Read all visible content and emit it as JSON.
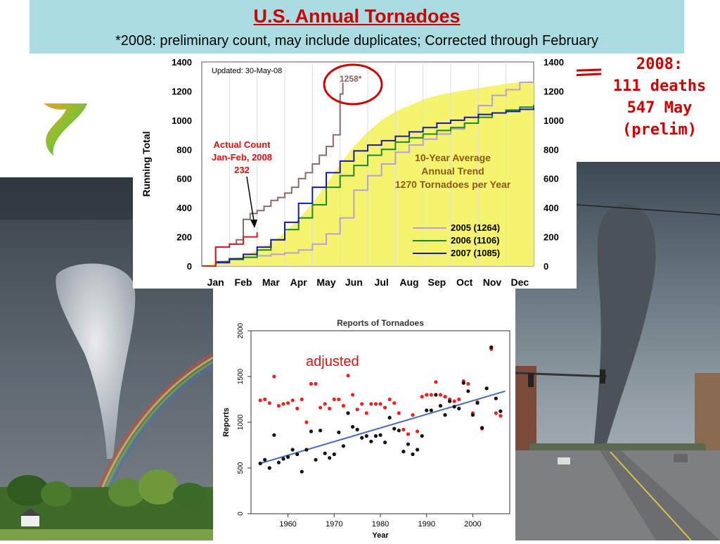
{
  "header": {
    "title": "U.S. Annual Tornadoes",
    "subtitle": "*2008: preliminary count, may include duplicates; Corrected through February"
  },
  "note_2008": [
    "2008:",
    "111 deaths",
    "547 May",
    "(prelim)"
  ],
  "photos": [
    "tornado-with-rainbow-photo",
    "tornado-over-town-street-photo",
    "tornado-logo-icon"
  ],
  "colors": {
    "title_red": "#cc0000",
    "header_bg": "#a9dde2",
    "trend_fill": "#f6f36e",
    "s2005": "#b79ee0",
    "s2006": "#1a8a2a",
    "s2007": "#1a1aaa",
    "s2008": "#cc2222",
    "adj_red": "#ee2222",
    "trend_blue": "#4a6ab8"
  },
  "chart_data": [
    {
      "type": "line",
      "title": "",
      "ylabel": "Running Total",
      "ylim": [
        0,
        1400
      ],
      "yticks": [
        "0",
        "200",
        "400",
        "600",
        "800",
        "1000",
        "1200",
        "1400"
      ],
      "categories": [
        "Jan",
        "Feb",
        "Mar",
        "Apr",
        "May",
        "Jun",
        "Jul",
        "Aug",
        "Sep",
        "Oct",
        "Nov",
        "Dec"
      ],
      "updated_label": "Updated: 30-May-08",
      "annotation_1258": "1258*",
      "actual_count_label": [
        "Actual Count",
        "Jan-Feb, 2008",
        "232"
      ],
      "trend_label": [
        "10-Year Average",
        "Annual Trend",
        "1270 Tornadoes per Year"
      ],
      "area": {
        "name": "10-Year Average Annual Trend",
        "x": [
          0,
          0.5,
          1,
          1.5,
          2,
          2.5,
          3,
          3.5,
          4,
          4.5,
          5,
          5.5,
          6,
          6.5,
          7,
          7.5,
          8,
          8.5,
          9,
          9.5,
          10,
          10.5,
          11,
          11.5,
          12
        ],
        "values": [
          0,
          20,
          45,
          70,
          110,
          160,
          230,
          320,
          430,
          560,
          700,
          820,
          920,
          1000,
          1060,
          1100,
          1140,
          1170,
          1190,
          1205,
          1220,
          1235,
          1250,
          1262,
          1270
        ]
      },
      "series": [
        {
          "name": "2005 (1264)",
          "x": [
            0,
            0.5,
            1,
            1.5,
            2,
            2.5,
            3,
            3.5,
            4,
            4.5,
            5,
            5.5,
            6,
            6.5,
            7,
            7.5,
            8,
            8.5,
            9,
            9.5,
            10,
            10.5,
            11,
            11.5,
            12
          ],
          "values": [
            0,
            20,
            45,
            60,
            70,
            80,
            90,
            110,
            150,
            220,
            330,
            520,
            620,
            700,
            780,
            830,
            870,
            905,
            940,
            980,
            1100,
            1170,
            1210,
            1260,
            1264
          ]
        },
        {
          "name": "2006 (1106)",
          "x": [
            0,
            0.5,
            1,
            1.5,
            2,
            2.5,
            3,
            3.5,
            4,
            4.5,
            5,
            5.5,
            6,
            6.5,
            7,
            7.5,
            8,
            8.5,
            9,
            9.5,
            10,
            10.5,
            11,
            11.5,
            12
          ],
          "values": [
            0,
            30,
            45,
            60,
            110,
            180,
            250,
            330,
            420,
            540,
            620,
            690,
            760,
            800,
            850,
            880,
            905,
            930,
            950,
            980,
            1020,
            1050,
            1070,
            1090,
            1106
          ]
        },
        {
          "name": "2007 (1085)",
          "x": [
            0,
            0.5,
            1,
            1.5,
            2,
            2.5,
            3,
            3.5,
            4,
            4.5,
            5,
            5.5,
            6,
            6.5,
            7,
            7.5,
            8,
            8.5,
            9,
            9.5,
            10,
            10.5,
            11,
            11.5,
            12
          ],
          "values": [
            0,
            25,
            50,
            80,
            130,
            180,
            300,
            430,
            540,
            640,
            720,
            790,
            830,
            860,
            890,
            920,
            950,
            980,
            1000,
            1020,
            1040,
            1050,
            1060,
            1075,
            1085
          ]
        },
        {
          "name": "2008",
          "x": [
            0,
            0.5,
            1,
            1.25,
            1.5,
            1.75,
            2,
            2.25,
            2.5,
            2.75,
            3,
            3.25,
            3.5,
            3.75,
            4,
            4.25,
            4.5,
            4.75,
            5,
            5.1
          ],
          "values": [
            0,
            130,
            150,
            180,
            320,
            360,
            380,
            410,
            450,
            470,
            500,
            540,
            600,
            640,
            700,
            760,
            820,
            900,
            1180,
            1258
          ]
        },
        {
          "name": "2008 Jan-Feb",
          "x": [
            0,
            0.5,
            1,
            1.5,
            2
          ],
          "values": [
            0,
            130,
            150,
            200,
            232
          ]
        }
      ]
    },
    {
      "type": "scatter",
      "title": "Reports of Tornadoes",
      "xlabel": "Year",
      "ylabel": "Reports",
      "xlim": [
        1952,
        2008
      ],
      "ylim": [
        0,
        2000
      ],
      "xticks": [
        "1960",
        "1970",
        "1980",
        "1990",
        "2000"
      ],
      "yticks": [
        "0",
        "500",
        "1000",
        "1500",
        "2000"
      ],
      "annotation": "adjusted",
      "trendline": {
        "x": [
          1954,
          2007
        ],
        "y": [
          550,
          1340
        ]
      },
      "series": [
        {
          "name": "adjusted",
          "x": [
            1954,
            1955,
            1956,
            1957,
            1958,
            1959,
            1960,
            1961,
            1962,
            1963,
            1964,
            1965,
            1966,
            1967,
            1968,
            1969,
            1970,
            1971,
            1972,
            1973,
            1974,
            1975,
            1976,
            1977,
            1978,
            1979,
            1980,
            1981,
            1982,
            1983,
            1984,
            1985,
            1986,
            1987,
            1988,
            1989,
            1990,
            1991,
            1992,
            1993,
            1994,
            1995,
            1996,
            1997,
            1998,
            1999,
            2000,
            2001,
            2002,
            2003,
            2004,
            2005,
            2006
          ],
          "values": [
            1240,
            1250,
            1210,
            1500,
            1180,
            1200,
            1210,
            1240,
            1150,
            1250,
            1000,
            1420,
            1420,
            1160,
            1200,
            1150,
            1250,
            1250,
            1180,
            1510,
            1300,
            1140,
            1200,
            1100,
            1200,
            1200,
            1200,
            1160,
            1250,
            1210,
            1100,
            920,
            870,
            1080,
            900,
            1280,
            1300,
            1300,
            1440,
            1300,
            1280,
            1250,
            1230,
            1250,
            1450,
            1420,
            1100,
            1220,
            930,
            1370,
            1800,
            1100,
            1070
          ]
        },
        {
          "name": "reports",
          "x": [
            1954,
            1955,
            1956,
            1957,
            1958,
            1959,
            1960,
            1961,
            1962,
            1963,
            1964,
            1965,
            1966,
            1967,
            1968,
            1969,
            1970,
            1971,
            1972,
            1973,
            1974,
            1975,
            1976,
            1977,
            1978,
            1979,
            1980,
            1981,
            1982,
            1983,
            1984,
            1985,
            1986,
            1987,
            1988,
            1989,
            1990,
            1991,
            1992,
            1993,
            1994,
            1995,
            1996,
            1997,
            1998,
            1999,
            2000,
            2001,
            2002,
            2003,
            2004,
            2005,
            2006
          ],
          "values": [
            550,
            590,
            500,
            860,
            560,
            600,
            620,
            700,
            650,
            460,
            700,
            900,
            590,
            910,
            660,
            610,
            650,
            890,
            740,
            1100,
            950,
            920,
            830,
            850,
            790,
            850,
            860,
            780,
            1050,
            930,
            910,
            680,
            760,
            650,
            700,
            850,
            1130,
            1130,
            1300,
            1180,
            1080,
            1230,
            1170,
            1150,
            1430,
            1340,
            1080,
            1210,
            940,
            1370,
            1820,
            1260,
            1120
          ]
        }
      ]
    }
  ]
}
